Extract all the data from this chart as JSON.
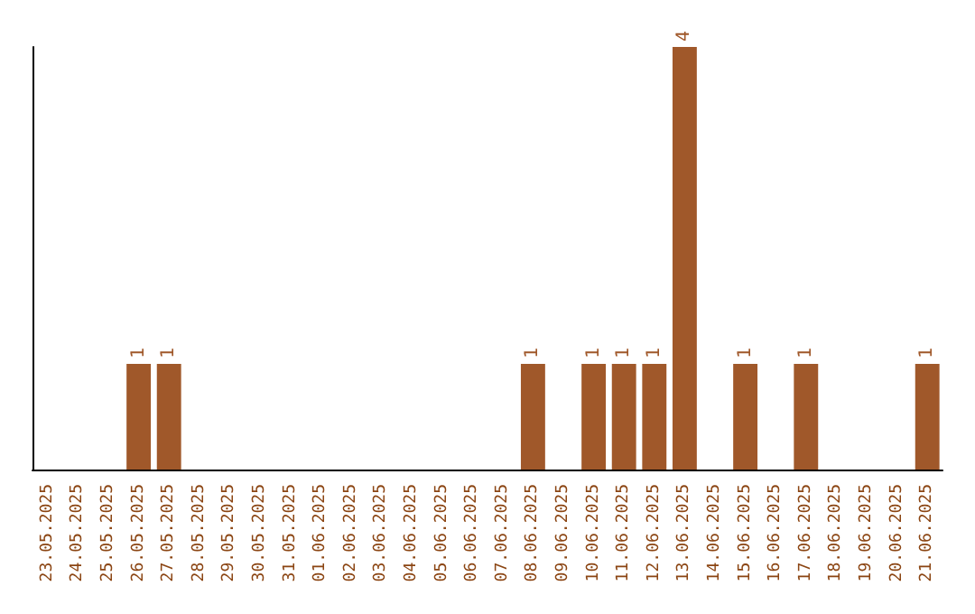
{
  "chart_data": {
    "type": "bar",
    "categories": [
      "23.05.2025",
      "24.05.2025",
      "25.05.2025",
      "26.05.2025",
      "27.05.2025",
      "28.05.2025",
      "29.05.2025",
      "30.05.2025",
      "31.05.2025",
      "01.06.2025",
      "02.06.2025",
      "03.06.2025",
      "04.06.2025",
      "05.06.2025",
      "06.06.2025",
      "07.06.2025",
      "08.06.2025",
      "09.06.2025",
      "10.06.2025",
      "11.06.2025",
      "12.06.2025",
      "13.06.2025",
      "14.06.2025",
      "15.06.2025",
      "16.06.2025",
      "17.06.2025",
      "18.06.2025",
      "19.06.2025",
      "20.06.2025",
      "21.06.2025"
    ],
    "values": [
      0,
      0,
      0,
      1,
      1,
      0,
      0,
      0,
      0,
      0,
      0,
      0,
      0,
      0,
      0,
      0,
      1,
      0,
      1,
      1,
      1,
      4,
      0,
      1,
      0,
      1,
      0,
      0,
      0,
      1
    ],
    "value_labels": [
      null,
      null,
      null,
      "1",
      "1",
      null,
      null,
      null,
      null,
      null,
      null,
      null,
      null,
      null,
      null,
      null,
      "1",
      null,
      "1",
      "1",
      "1",
      "4",
      null,
      "1",
      null,
      "1",
      null,
      null,
      null,
      "1"
    ],
    "color": "#a0582a",
    "tick_labels": "x"
  }
}
